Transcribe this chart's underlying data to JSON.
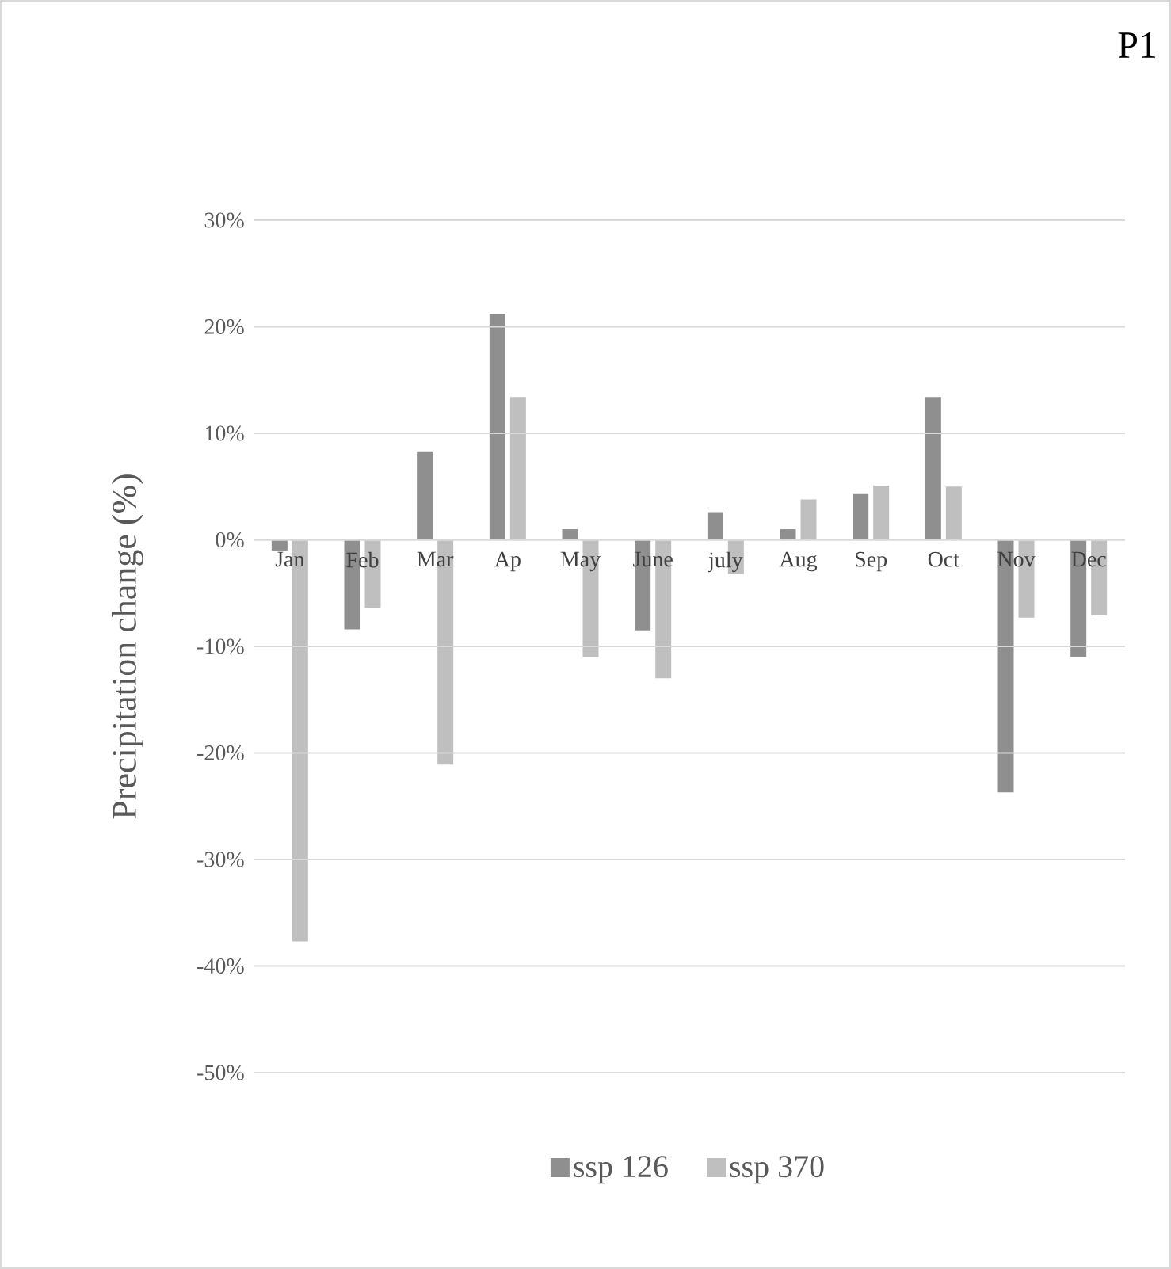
{
  "chart_data": {
    "type": "bar",
    "title": "P1",
    "ylabel": "Precipitation change (%)",
    "categories": [
      "Jan",
      "Feb",
      "Mar",
      "Ap",
      "May",
      "June",
      "july",
      "Aug",
      "Sep",
      "Oct",
      "Nov",
      "Dec"
    ],
    "series": [
      {
        "name": "ssp 126",
        "color": "#8f8f8f",
        "values": [
          -1.0,
          -8.4,
          8.3,
          21.2,
          1.0,
          -8.5,
          2.6,
          1.0,
          4.3,
          13.4,
          -23.7,
          -11.0
        ]
      },
      {
        "name": "ssp 370",
        "color": "#bfbfbf",
        "values": [
          -37.7,
          -6.4,
          -21.1,
          13.4,
          -11.0,
          -13.0,
          -3.2,
          3.8,
          5.1,
          5.0,
          -7.3,
          -7.1
        ]
      }
    ],
    "ylim": [
      -50,
      30
    ],
    "yticks": [
      {
        "value": -50,
        "label": "-50%"
      },
      {
        "value": -40,
        "label": "-40%"
      },
      {
        "value": -30,
        "label": "-30%"
      },
      {
        "value": -20,
        "label": "-20%"
      },
      {
        "value": -10,
        "label": "-10%"
      },
      {
        "value": 0,
        "label": "0%"
      },
      {
        "value": 10,
        "label": "10%"
      },
      {
        "value": 20,
        "label": "20%"
      },
      {
        "value": 30,
        "label": "30%"
      }
    ],
    "grid": "y",
    "legend": "bottom"
  }
}
